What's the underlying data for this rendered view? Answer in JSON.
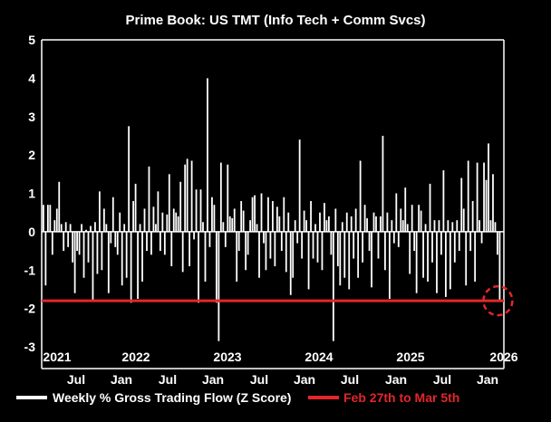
{
  "chart_data": {
    "type": "bar",
    "title": "Prime Book: US TMT (Info Tech + Comm Svcs)",
    "ylim": [
      -3,
      5
    ],
    "yticks": [
      "-3",
      "-2",
      "-1",
      "0",
      "1",
      "2",
      "3",
      "4",
      "5"
    ],
    "year_labels": [
      "2021",
      "2022",
      "2023",
      "2024",
      "2025",
      "2026"
    ],
    "month_labels": [
      "Jul",
      "Jan",
      "Jul",
      "Jan",
      "Jul",
      "Jan",
      "Jul",
      "Jan",
      "Jul",
      "Jan"
    ],
    "grid": false,
    "legend_placement": "bottom",
    "series": [
      {
        "name": "Weekly % Gross Trading Flow (Z Score)",
        "color": "#ffffff",
        "values": [
          0.7,
          -1.4,
          0.7,
          0.7,
          -0.6,
          0.3,
          0.6,
          1.3,
          0.2,
          -0.5,
          0.25,
          -0.4,
          0.2,
          -0.8,
          -1.6,
          -0.5,
          -0.6,
          0.2,
          -1.2,
          0.05,
          -0.8,
          0.15,
          -1.8,
          0.25,
          -1.1,
          1.05,
          -1.0,
          0.6,
          0.2,
          -1.6,
          -0.3,
          0.9,
          -0.4,
          -0.6,
          0.5,
          -1.4,
          0.2,
          -1.2,
          2.75,
          -1.85,
          0.8,
          1.25,
          -1.75,
          0.2,
          -1.3,
          0.6,
          -0.5,
          1.7,
          -0.6,
          0.65,
          0.2,
          1.05,
          -0.5,
          0.5,
          -0.6,
          0.45,
          1.5,
          -0.9,
          0.6,
          0.5,
          0.4,
          1.3,
          -1.05,
          1.75,
          1.9,
          -0.9,
          1.85,
          -0.2,
          1.1,
          -1.85,
          1.1,
          0.25,
          -1.3,
          4.0,
          -0.4,
          0.9,
          0.7,
          -1.85,
          -2.85,
          1.8,
          0.25,
          -0.4,
          1.75,
          0.4,
          0.35,
          0.6,
          -1.3,
          -0.5,
          0.8,
          0.55,
          -1.0,
          -0.6,
          0.3,
          0.9,
          0.95,
          0.2,
          -1.2,
          1.0,
          -0.3,
          -1.0,
          0.9,
          -0.7,
          0.8,
          -0.9,
          0.65,
          0.4,
          -0.5,
          0.9,
          -1.05,
          0.5,
          -1.65,
          -1.2,
          0.3,
          -0.3,
          2.4,
          -0.7,
          0.55,
          0.3,
          -1.5,
          0.8,
          -0.7,
          0.2,
          -0.8,
          0.5,
          -1.0,
          0.75,
          0.3,
          0.4,
          -0.6,
          -2.85,
          0.6,
          -0.9,
          -1.4,
          0.25,
          -1.2,
          0.5,
          -1.5,
          0.4,
          -0.7,
          0.6,
          -1.2,
          1.85,
          -0.8,
          0.7,
          0.35,
          -0.5,
          -1.45,
          0.5,
          0.4,
          -0.7,
          0.4,
          2.5,
          -1.0,
          0.5,
          -1.75,
          0.3,
          -0.3,
          1.0,
          -0.4,
          0.6,
          0.3,
          1.15,
          0.2,
          -1.1,
          0.7,
          -0.5,
          -1.6,
          0.7,
          0.55,
          -1.2,
          0.2,
          -1.3,
          1.25,
          -0.8,
          0.3,
          -1.6,
          0.3,
          -0.6,
          1.6,
          -1.7,
          0.3,
          -1.5,
          0.25,
          -0.8,
          0.3,
          -0.5,
          1.4,
          0.6,
          -1.4,
          1.85,
          -0.5,
          0.8,
          -1.3,
          1.8,
          0.3,
          -0.3,
          1.8,
          1.35,
          2.3,
          0.3,
          1.5,
          0.25,
          -0.6,
          -1.8
        ]
      },
      {
        "name": "Feb 27th to Mar 5th",
        "color": "#e3262a",
        "value": -1.8
      }
    ]
  }
}
